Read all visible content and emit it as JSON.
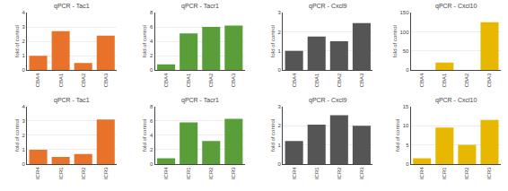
{
  "chart_data": [
    {
      "type": "bar",
      "title": "qPCR - Tac1",
      "ylabel": "fold of control",
      "categories": [
        "CBA4",
        "CBA1",
        "CBA2",
        "CBA3"
      ],
      "values": [
        1.0,
        2.7,
        0.5,
        2.4
      ],
      "color": "#E8722A",
      "ylim": [
        0,
        4
      ],
      "yticks": [
        0,
        1,
        2,
        3,
        4
      ],
      "grid": true
    },
    {
      "type": "bar",
      "title": "qPCR - Tacr1",
      "ylabel": "fold of control",
      "categories": [
        "CBA4",
        "CBA1",
        "CBA2",
        "CBA3"
      ],
      "values": [
        0.8,
        5.1,
        6.0,
        6.2
      ],
      "color": "#5A9E3A",
      "ylim": [
        0,
        8
      ],
      "yticks": [
        0,
        2,
        4,
        6,
        8
      ],
      "grid": true
    },
    {
      "type": "bar",
      "title": "qPCR - Cxcl9",
      "ylabel": "fold of control",
      "categories": [
        "CBA4",
        "CBA1",
        "CBA2",
        "CBA3"
      ],
      "values": [
        1.0,
        1.75,
        1.5,
        2.45
      ],
      "color": "#555555",
      "ylim": [
        0,
        3
      ],
      "yticks": [
        0,
        1,
        2,
        3
      ],
      "grid": true
    },
    {
      "type": "bar",
      "title": "qPCR - Cxcl10",
      "ylabel": "fold of control",
      "categories": [
        "CBA4",
        "CBA1",
        "CBA2",
        "CBA3"
      ],
      "values": [
        0,
        20,
        0,
        125
      ],
      "color": "#E8B800",
      "ylim": [
        0,
        150
      ],
      "yticks": [
        0,
        50,
        100,
        150
      ],
      "grid": true
    },
    {
      "type": "bar",
      "title": "qPCR - Tac1",
      "ylabel": "fold of control",
      "categories": [
        "ICR4",
        "ICR1",
        "ICR2",
        "ICR3"
      ],
      "values": [
        1.0,
        0.5,
        0.7,
        3.1
      ],
      "color": "#E8722A",
      "ylim": [
        0,
        4
      ],
      "yticks": [
        0,
        1,
        2,
        3,
        4
      ],
      "grid": true
    },
    {
      "type": "bar",
      "title": "qPCR - Tacr1",
      "ylabel": "fold of control",
      "categories": [
        "ICR4",
        "ICR1",
        "ICR2",
        "ICR3"
      ],
      "values": [
        0.8,
        5.8,
        3.2,
        6.3
      ],
      "color": "#5A9E3A",
      "ylim": [
        0,
        8
      ],
      "yticks": [
        0,
        2,
        4,
        6,
        8
      ],
      "grid": true
    },
    {
      "type": "bar",
      "title": "qPCR - Cxcl9",
      "ylabel": "fold of control",
      "categories": [
        "ICR4",
        "ICR1",
        "ICR2",
        "ICR3"
      ],
      "values": [
        1.2,
        2.05,
        2.55,
        2.0
      ],
      "color": "#555555",
      "ylim": [
        0,
        3
      ],
      "yticks": [
        0,
        1,
        2,
        3
      ],
      "grid": true
    },
    {
      "type": "bar",
      "title": "qPCR - Cxcl10",
      "ylabel": "fold of control",
      "categories": [
        "ICR4",
        "ICR1",
        "ICR2",
        "ICR3"
      ],
      "values": [
        1.5,
        9.5,
        5.0,
        11.5
      ],
      "color": "#E8B800",
      "ylim": [
        0,
        15
      ],
      "yticks": [
        0,
        5,
        10,
        15
      ],
      "grid": true
    }
  ]
}
